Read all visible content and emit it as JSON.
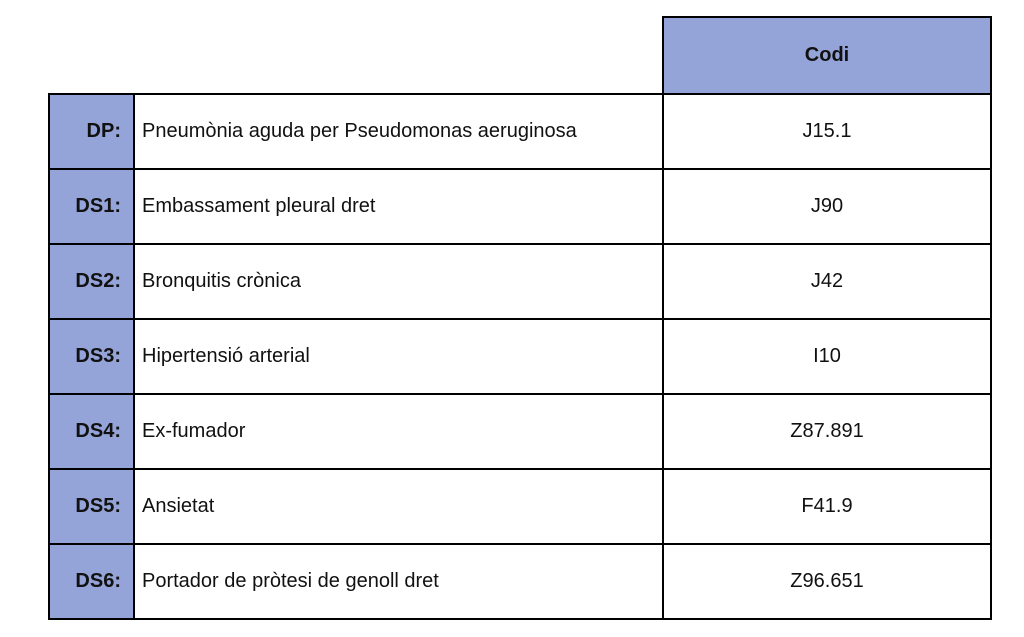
{
  "table": {
    "header": {
      "codi_label": "Codi"
    },
    "rows": [
      {
        "label": "DP:",
        "description": "Pneumònia aguda per Pseudomonas aeruginosa",
        "code": "J15.1"
      },
      {
        "label": "DS1:",
        "description": "Embassament pleural dret",
        "code": "J90"
      },
      {
        "label": "DS2:",
        "description": "Bronquitis crònica",
        "code": "J42"
      },
      {
        "label": "DS3:",
        "description": "Hipertensió arterial",
        "code": "I10"
      },
      {
        "label": "DS4:",
        "description": "Ex-fumador",
        "code": "Z87.891"
      },
      {
        "label": "DS5:",
        "description": "Ansietat",
        "code": "F41.9"
      },
      {
        "label": "DS6:",
        "description": "Portador de pròtesi de genoll dret",
        "code": "Z96.651"
      }
    ],
    "colors": {
      "header_bg": "#95A4D8",
      "label_bg": "#95A4D8",
      "border": "#000000"
    }
  }
}
